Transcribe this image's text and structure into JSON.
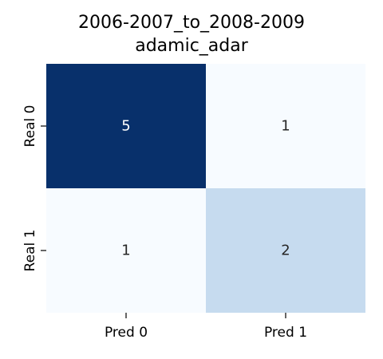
{
  "chart_data": {
    "type": "heatmap",
    "title": "2006-2007_to_2008-2009",
    "subtitle": "adamic_adar",
    "x_categories": [
      "Pred 0",
      "Pred 1"
    ],
    "y_categories": [
      "Real 0",
      "Real 1"
    ],
    "values": [
      [
        5,
        1
      ],
      [
        1,
        2
      ]
    ],
    "colormap": "Blues",
    "colorbar": false,
    "grid": false
  }
}
